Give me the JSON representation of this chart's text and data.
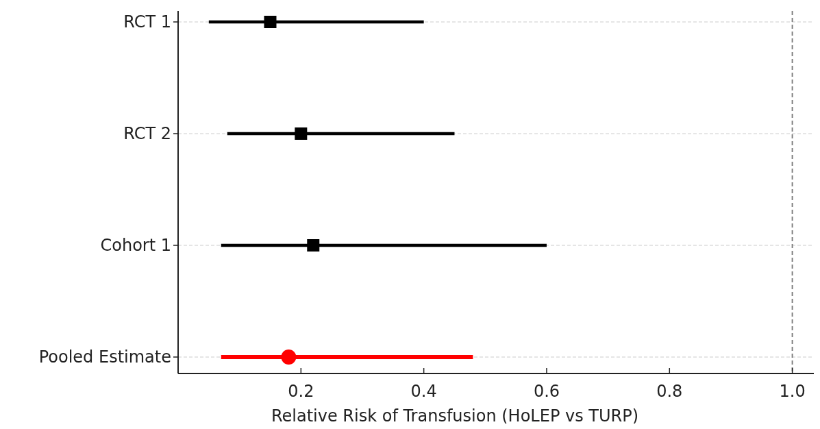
{
  "chart_data": {
    "type": "scatter",
    "orientation": "horizontal",
    "xlabel": "Relative Risk of Transfusion (HoLEP vs TURP)",
    "categories": [
      "RCT 1",
      "RCT 2",
      "Cohort 1",
      "Pooled Estimate"
    ],
    "series": [
      {
        "color": "#000000",
        "marker": "square",
        "values": [
          0.15,
          0.2,
          0.22,
          null
        ],
        "errors": [
          [
            0.05,
            0.4
          ],
          [
            0.08,
            0.45
          ],
          [
            0.07,
            0.6
          ],
          null
        ]
      },
      {
        "color": "#ff0000",
        "marker": "circle",
        "values": [
          null,
          null,
          null,
          0.18
        ],
        "errors": [
          null,
          null,
          null,
          [
            0.07,
            0.48
          ]
        ]
      }
    ],
    "xlim": [
      0,
      1.035
    ],
    "xticks": [
      {
        "value": 0.2,
        "label": "0.2"
      },
      {
        "value": 0.4,
        "label": "0.4"
      },
      {
        "value": 0.6,
        "label": "0.6"
      },
      {
        "value": 0.8,
        "label": "0.8"
      },
      {
        "value": 1.0,
        "label": "1.0"
      }
    ],
    "grid": "y",
    "ref_lines": [
      {
        "axis": "x",
        "value": 1.0,
        "color": "#808080",
        "line_style": "dashed"
      }
    ]
  }
}
